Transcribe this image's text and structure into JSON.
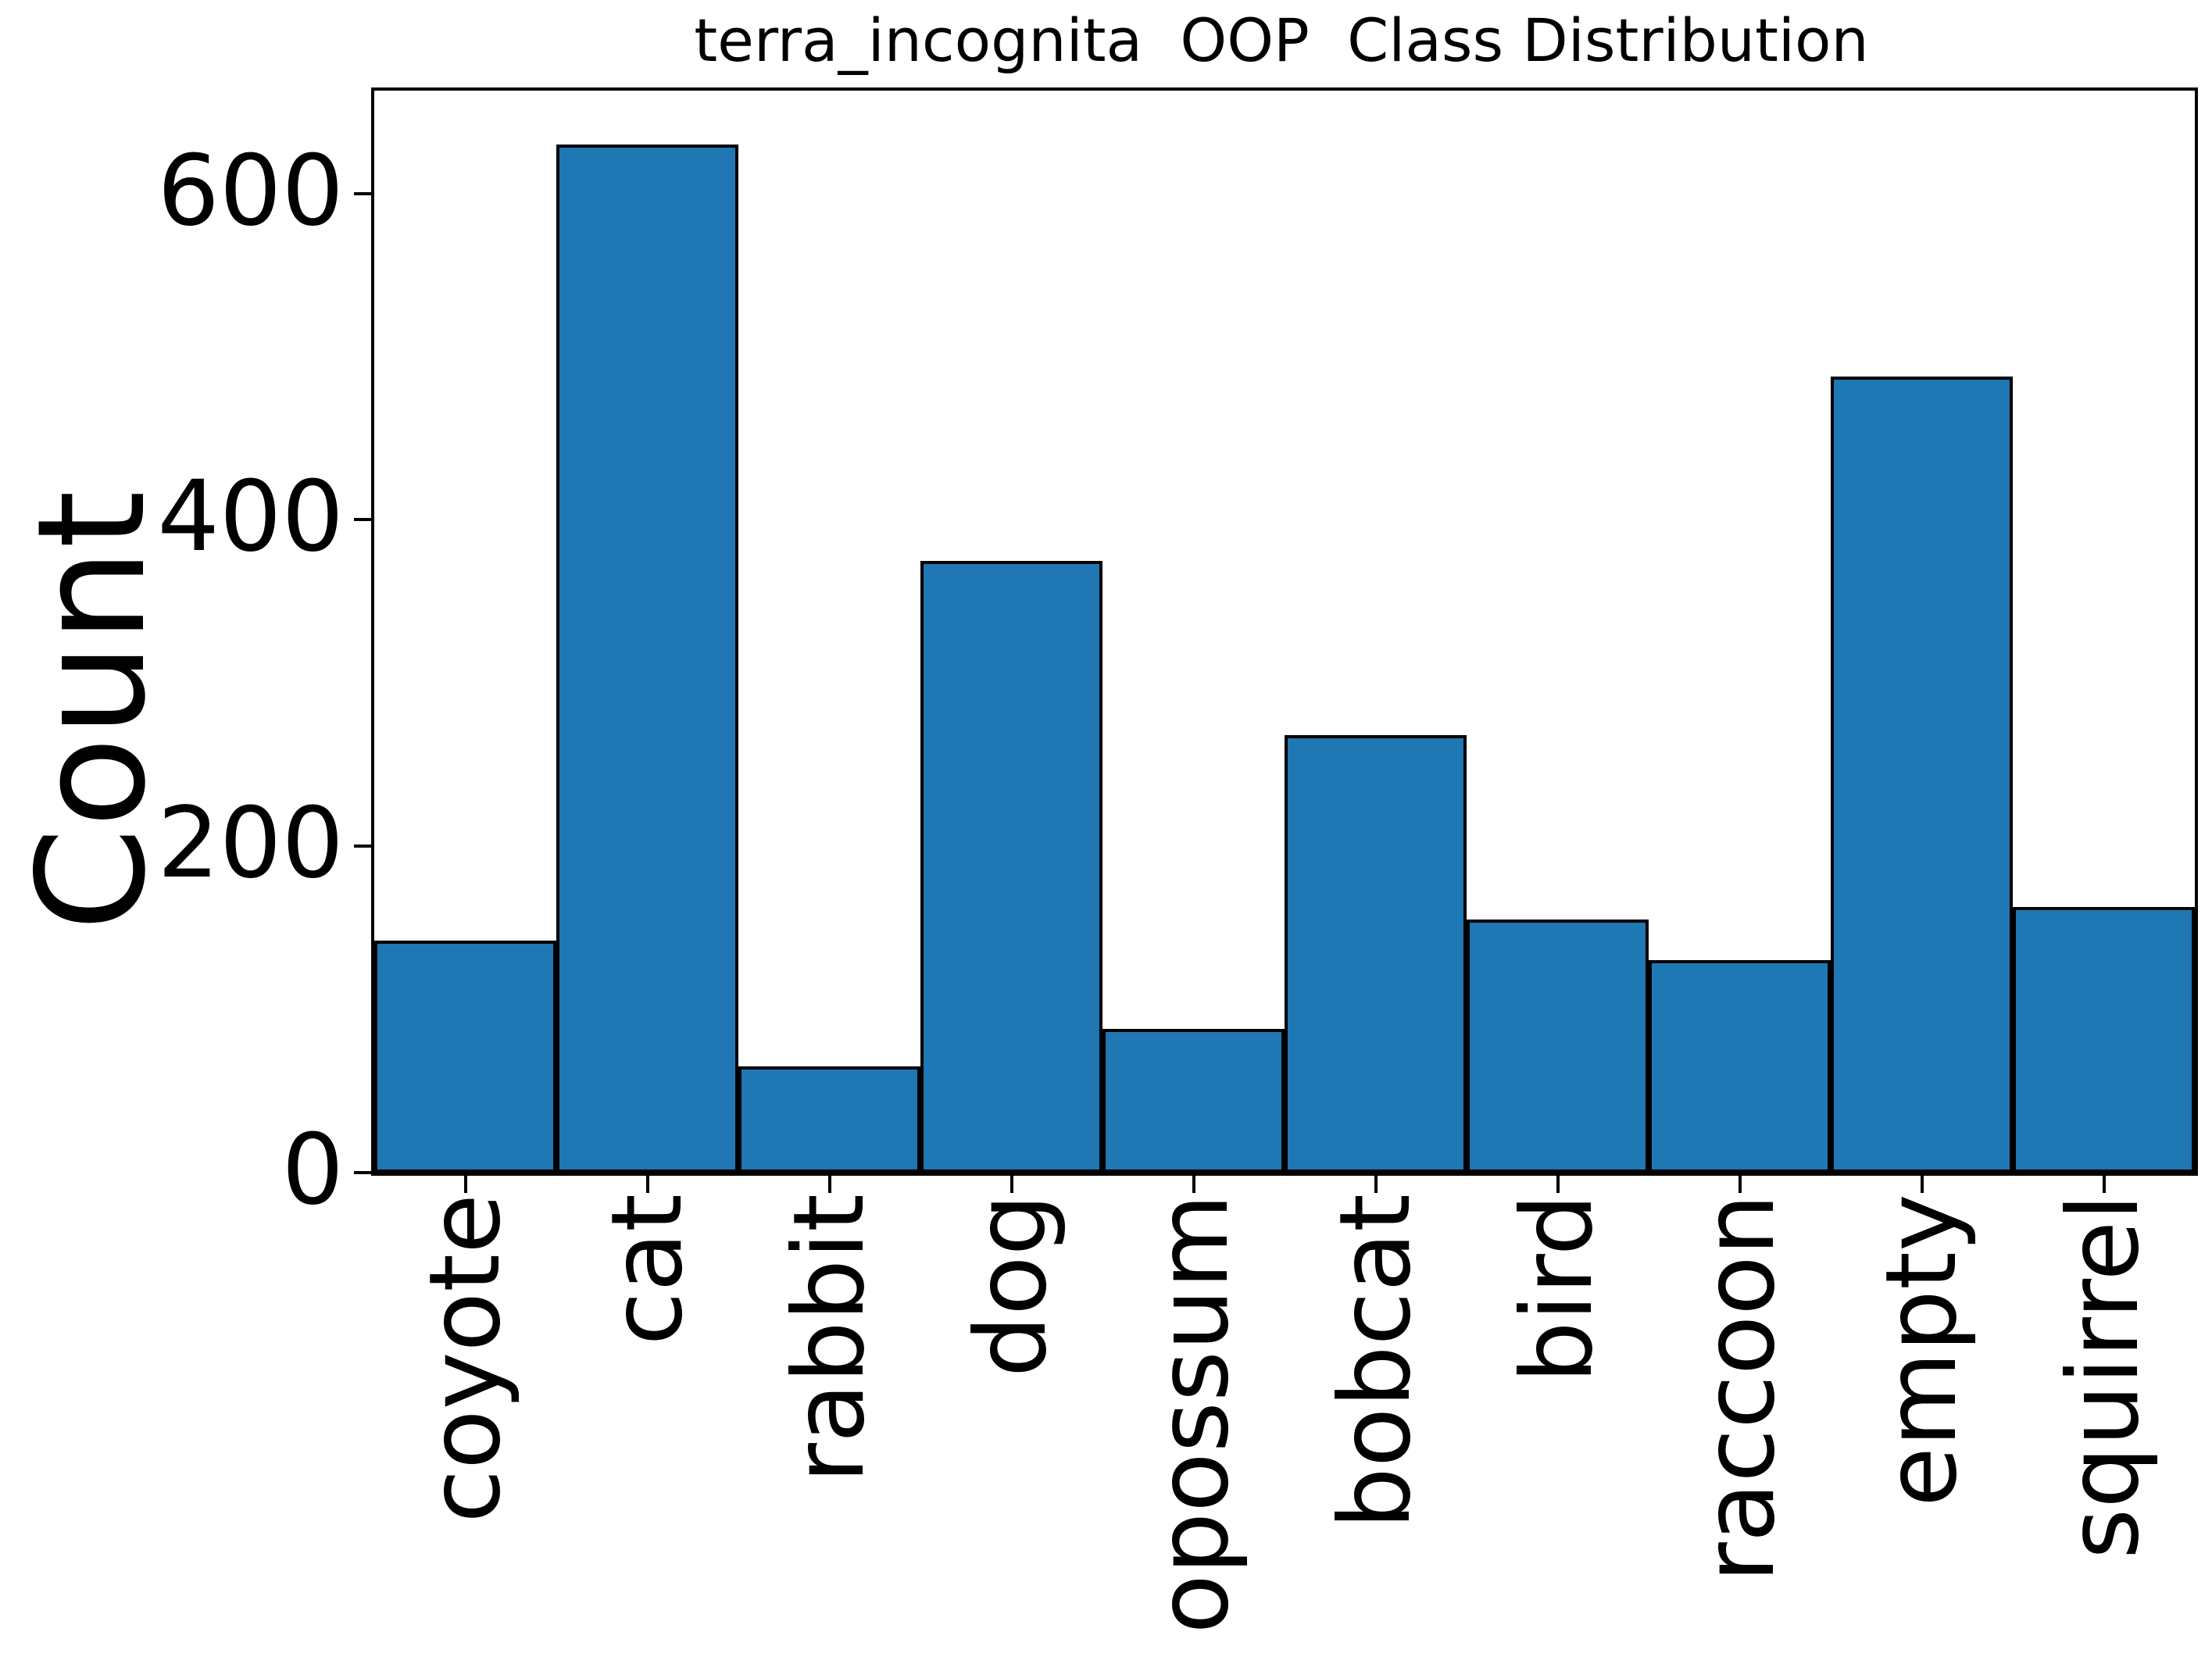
{
  "title": "terra_incognita  OOP  Class Distribution",
  "chart_data": {
    "type": "bar",
    "title": "terra_incognita  OOP  Class Distribution",
    "xlabel": "",
    "ylabel": "Count",
    "categories": [
      "coyote",
      "cat",
      "rabbit",
      "dog",
      "opossum",
      "bobcat",
      "bird",
      "raccoon",
      "empty",
      "squirrel"
    ],
    "values": [
      142,
      630,
      65,
      375,
      88,
      268,
      155,
      130,
      488,
      163
    ],
    "ylim": [
      0,
      663
    ],
    "yticks": [
      0,
      200,
      400,
      600
    ],
    "grid": false,
    "legend": "none",
    "bar_color": "#1f77b4",
    "bar_edge_color": "#000000",
    "tick_label_rotation": 90
  }
}
